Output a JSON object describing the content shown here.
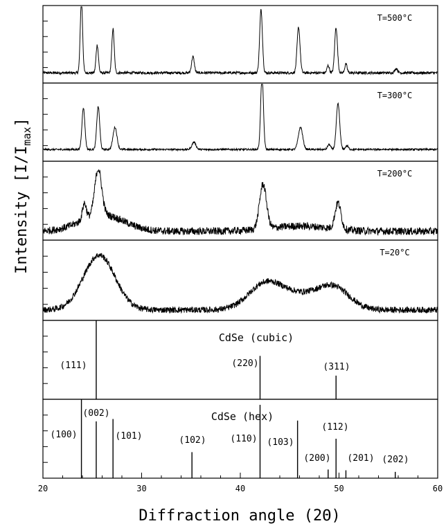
{
  "chart_data": {
    "type": "line",
    "xlabel": "Diffraction angle (2Θ)",
    "ylabel": "Intensity [I/I",
    "ylabel_sub": "max",
    "ylabel_end": "]",
    "xlim": [
      20,
      60
    ],
    "xticks": [
      20,
      30,
      40,
      50,
      60
    ],
    "series": [
      {
        "name": "T=500°C",
        "baseline": 0.12,
        "noise": 0.018,
        "humps": [],
        "peaks": [
          [
            23.9,
            1.0,
            0.12
          ],
          [
            25.5,
            0.38,
            0.12
          ],
          [
            27.1,
            0.6,
            0.12
          ],
          [
            35.2,
            0.22,
            0.14
          ],
          [
            42.1,
            0.86,
            0.14
          ],
          [
            45.9,
            0.62,
            0.15
          ],
          [
            48.9,
            0.1,
            0.12
          ],
          [
            49.7,
            0.62,
            0.14
          ],
          [
            50.7,
            0.12,
            0.12
          ],
          [
            55.8,
            0.06,
            0.14
          ]
        ]
      },
      {
        "name": "T=300°C",
        "baseline": 0.14,
        "noise": 0.012,
        "humps": [],
        "peaks": [
          [
            24.1,
            0.56,
            0.15
          ],
          [
            25.6,
            0.58,
            0.15
          ],
          [
            27.3,
            0.3,
            0.2
          ],
          [
            35.3,
            0.1,
            0.2
          ],
          [
            42.2,
            1.0,
            0.14
          ],
          [
            46.1,
            0.3,
            0.22
          ],
          [
            49.0,
            0.07,
            0.15
          ],
          [
            49.9,
            0.62,
            0.17
          ],
          [
            50.8,
            0.05,
            0.15
          ]
        ]
      },
      {
        "name": "T=200°C",
        "baseline": 0.1,
        "noise": 0.05,
        "humps": [
          [
            26.0,
            0.22,
            2.2
          ],
          [
            46.0,
            0.07,
            3.0
          ]
        ],
        "peaks": [
          [
            24.2,
            0.22,
            0.2
          ],
          [
            25.6,
            0.62,
            0.35
          ],
          [
            42.3,
            0.6,
            0.35
          ],
          [
            49.9,
            0.35,
            0.3
          ]
        ]
      },
      {
        "name": "T=20°C",
        "baseline": 0.12,
        "noise": 0.04,
        "humps": [
          [
            25.7,
            0.72,
            1.6
          ],
          [
            42.5,
            0.32,
            1.7
          ],
          [
            49.5,
            0.27,
            1.6
          ],
          [
            46.0,
            0.18,
            2.2
          ]
        ],
        "peaks": []
      }
    ],
    "reference_patterns": [
      {
        "name": "CdSe (cubic)",
        "lines": [
          {
            "hkl": "(111)",
            "x": 25.4,
            "intensity": 1.0
          },
          {
            "hkl": "(220)",
            "x": 42.0,
            "intensity": 0.55
          },
          {
            "hkl": "(311)",
            "x": 49.7,
            "intensity": 0.3
          }
        ]
      },
      {
        "name": "CdSe (hex)",
        "lines": [
          {
            "hkl": "(100)",
            "x": 23.9,
            "intensity": 1.0
          },
          {
            "hkl": "(002)",
            "x": 25.4,
            "intensity": 0.72
          },
          {
            "hkl": "(101)",
            "x": 27.1,
            "intensity": 0.75
          },
          {
            "hkl": "(102)",
            "x": 35.1,
            "intensity": 0.33
          },
          {
            "hkl": "(110)",
            "x": 42.0,
            "intensity": 0.93
          },
          {
            "hkl": "(103)",
            "x": 45.8,
            "intensity": 0.73
          },
          {
            "hkl": "(200)",
            "x": 48.9,
            "intensity": 0.11
          },
          {
            "hkl": "(112)",
            "x": 49.7,
            "intensity": 0.5
          },
          {
            "hkl": "(201)",
            "x": 50.7,
            "intensity": 0.1
          },
          {
            "hkl": "(202)",
            "x": 55.7,
            "intensity": 0.08
          }
        ]
      }
    ]
  }
}
